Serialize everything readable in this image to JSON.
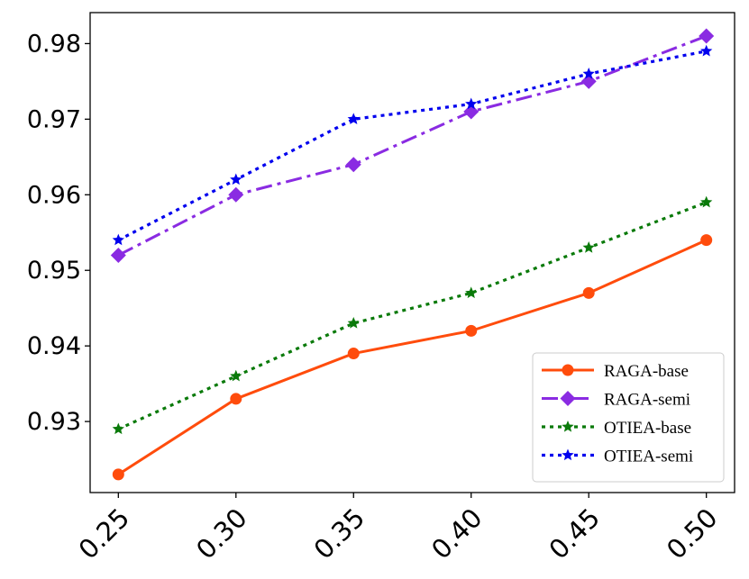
{
  "chart_data": {
    "type": "line",
    "title": "",
    "xlabel": "",
    "ylabel": "",
    "categories": [
      "0.25",
      "0.30",
      "0.35",
      "0.40",
      "0.45",
      "0.50"
    ],
    "x": [
      0.25,
      0.3,
      0.35,
      0.4,
      0.45,
      0.5
    ],
    "xlim": [
      0.238,
      0.512
    ],
    "ylim": [
      0.9206,
      0.9841
    ],
    "yticks": [
      0.93,
      0.94,
      0.95,
      0.96,
      0.97,
      0.98
    ],
    "ytick_labels": [
      "0.93",
      "0.94",
      "0.95",
      "0.96",
      "0.97",
      "0.98"
    ],
    "grid": false,
    "legend_position": "lower-right",
    "series": [
      {
        "name": "RAGA-base",
        "values": [
          0.923,
          0.933,
          0.939,
          0.942,
          0.947,
          0.954
        ],
        "color": "#ff4c0c",
        "marker": "circle",
        "linestyle": "solid"
      },
      {
        "name": "RAGA-semi",
        "values": [
          0.952,
          0.96,
          0.964,
          0.971,
          0.975,
          0.981
        ],
        "color": "#8a2be2",
        "marker": "diamond",
        "linestyle": "dashdot"
      },
      {
        "name": "OTIEA-base",
        "values": [
          0.929,
          0.936,
          0.943,
          0.947,
          0.953,
          0.959
        ],
        "color": "#0a7a0a",
        "marker": "star",
        "linestyle": "dotted"
      },
      {
        "name": "OTIEA-semi",
        "values": [
          0.954,
          0.962,
          0.97,
          0.972,
          0.976,
          0.979
        ],
        "color": "#0000ee",
        "marker": "star",
        "linestyle": "dotted"
      }
    ]
  }
}
